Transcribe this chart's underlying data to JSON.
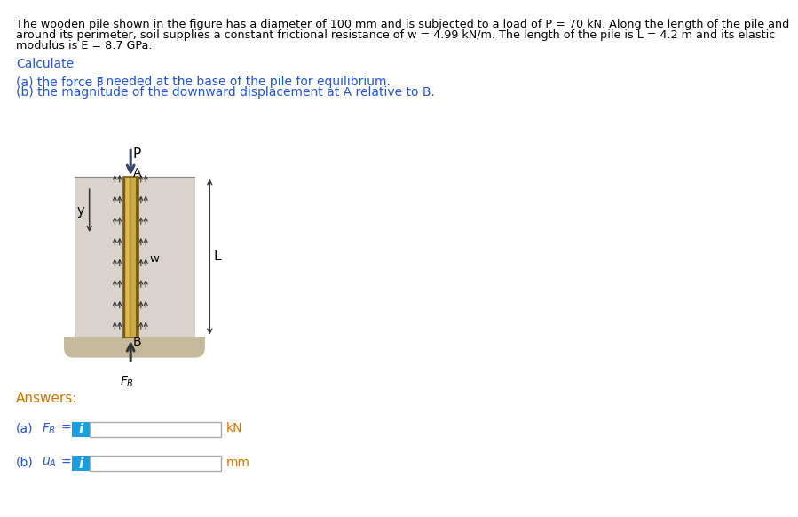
{
  "bg_color": "#ffffff",
  "soil_color": "#d8d3cc",
  "soil_bottom_color": "#c4b99a",
  "pile_gold_light": "#c8a84a",
  "pile_gold_mid": "#b8922a",
  "pile_gold_dark": "#7a5c10",
  "arrow_blue": "#1a4a8a",
  "arrow_dark": "#333333",
  "text_blue": "#2255cc",
  "text_orange": "#cc7700",
  "text_dark": "#333333",
  "input_blue": "#1a9fdd",
  "border_gray": "#aaaaaa",
  "line1": "The wooden pile shown in the figure has a diameter of 100 mm and is subjected to a load of P = 70 kN. Along the length of the pile and",
  "line2": "around its perimeter, soil supplies a constant frictional resistance of w = 4.99 kN/m. The length of the pile is L = 4.2 m and its elastic",
  "line3": "modulus is E = 8.7 GPa.",
  "calc_text": "Calculate",
  "part_a": "(a) the force F",
  "part_a_sub": "B",
  "part_a_rest": " needed at the base of the pile for equilibrium.",
  "part_b": "(b) the magnitude of the downward displacement at A relative to B.",
  "answers_label": "Answers:",
  "unit_a": "kN",
  "unit_b": "mm"
}
